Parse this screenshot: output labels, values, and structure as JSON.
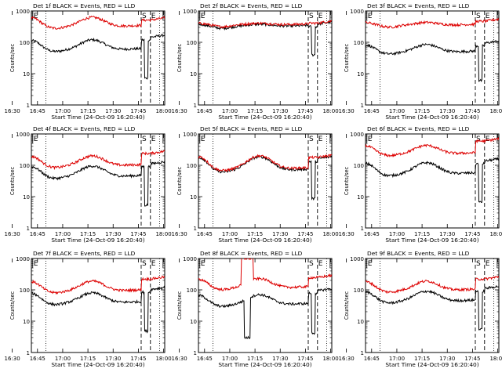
{
  "chart_data": [
    {
      "type": "line",
      "title": "Det 1f BLACK = Events, RED = LLD",
      "xlabel": "Start Time (24-Oct-09 16:20:40)",
      "ylabel": "Counts/sec",
      "yscale": "log",
      "ylim": [
        1,
        1000
      ],
      "xlim_min": [
        20.7,
        100.0
      ],
      "xticks": [
        "16:30",
        "16:45",
        "17:00",
        "17:15",
        "17:30",
        "17:45",
        "18:00"
      ],
      "yticks": [
        "1",
        "10",
        "100",
        "1000"
      ],
      "markers": {
        "E_min": [
          21.5,
          99.0
        ],
        "dotted_min": [
          29.3,
          97.0
        ],
        "dashed_min": [
          86.0,
          91.5
        ],
        "S_label": "S",
        "E_label": "E"
      },
      "series": [
        {
          "name": "Events",
          "color": "#000000",
          "base": 60,
          "hump": 2.0,
          "postdrop": true,
          "tail": 170
        },
        {
          "name": "LLD",
          "color": "#dd0000",
          "base": 330,
          "hump": 1.9,
          "postdrop": false,
          "tail": 600
        }
      ]
    },
    {
      "type": "line",
      "title": "Det 2f BLACK = Events, RED = LLD",
      "xlabel": "Start Time (24-Oct-09 16:20:40)",
      "ylabel": "Counts/sec",
      "yscale": "log",
      "ylim": [
        1,
        1000
      ],
      "xlim_min": [
        20.7,
        100.0
      ],
      "xticks": [
        "16:30",
        "16:45",
        "17:00",
        "17:15",
        "17:30",
        "17:45",
        "18:00"
      ],
      "yticks": [
        "1",
        "10",
        "100",
        "1000"
      ],
      "markers": {
        "E_min": [
          21.5,
          99.0
        ],
        "dotted_min": [
          29.3,
          97.0
        ],
        "dashed_min": [
          86.0,
          91.5
        ],
        "S_label": "S",
        "E_label": "E"
      },
      "series": [
        {
          "name": "Events",
          "color": "#000000",
          "base": 330,
          "hump": 1.15,
          "postdrop": true,
          "tail": 450
        },
        {
          "name": "LLD",
          "color": "#dd0000",
          "base": 370,
          "hump": 1.1,
          "postdrop": false,
          "tail": 480
        }
      ]
    },
    {
      "type": "line",
      "title": "Det 3f BLACK = Events, RED = LLD",
      "xlabel": "Start Time (24-Oct-09 16:20:40)",
      "ylabel": "Counts/sec",
      "yscale": "log",
      "ylim": [
        1,
        1000
      ],
      "xlim_min": [
        20.7,
        100.0
      ],
      "xticks": [
        "16:30",
        "16:45",
        "17:00",
        "17:15",
        "17:30",
        "17:45",
        "18:00"
      ],
      "yticks": [
        "1",
        "10",
        "100",
        "1000"
      ],
      "markers": {
        "E_min": [
          21.5,
          99.0
        ],
        "dotted_min": [
          29.3,
          97.0
        ],
        "dashed_min": [
          86.0,
          91.5
        ],
        "S_label": "S",
        "E_label": "E"
      },
      "series": [
        {
          "name": "Events",
          "color": "#000000",
          "base": 50,
          "hump": 1.7,
          "postdrop": true,
          "tail": 110
        },
        {
          "name": "LLD",
          "color": "#dd0000",
          "base": 360,
          "hump": 1.2,
          "postdrop": false,
          "tail": 550
        }
      ]
    },
    {
      "type": "line",
      "title": "Det 4f BLACK = Events, RED = LLD",
      "xlabel": "Start Time (24-Oct-09 16:20:40)",
      "ylabel": "Counts/sec",
      "yscale": "log",
      "ylim": [
        1,
        1000
      ],
      "xlim_min": [
        20.7,
        100.0
      ],
      "xticks": [
        "16:30",
        "16:45",
        "17:00",
        "17:15",
        "17:30",
        "17:45",
        "18:00"
      ],
      "yticks": [
        "1",
        "10",
        "100",
        "1000"
      ],
      "markers": {
        "E_min": [
          21.5,
          99.0
        ],
        "dotted_min": [
          29.3,
          97.0
        ],
        "dashed_min": [
          86.0,
          91.5
        ],
        "S_label": "S",
        "E_label": "E"
      },
      "series": [
        {
          "name": "Events",
          "color": "#000000",
          "base": 45,
          "hump": 2.1,
          "postdrop": true,
          "tail": 130
        },
        {
          "name": "LLD",
          "color": "#dd0000",
          "base": 100,
          "hump": 2.0,
          "postdrop": false,
          "tail": 280
        }
      ]
    },
    {
      "type": "line",
      "title": "Det 5f BLACK = Events, RED = LLD",
      "xlabel": "Start Time (24-Oct-09 16:20:40)",
      "ylabel": "Counts/sec",
      "yscale": "log",
      "ylim": [
        1,
        1000
      ],
      "xlim_min": [
        20.7,
        100.0
      ],
      "xticks": [
        "16:30",
        "16:45",
        "17:00",
        "17:15",
        "17:30",
        "17:45",
        "18:00"
      ],
      "yticks": [
        "1",
        "10",
        "100",
        "1000"
      ],
      "markers": {
        "E_min": [
          21.5,
          99.0
        ],
        "dotted_min": [
          29.3,
          97.0
        ],
        "dashed_min": [
          86.0,
          91.5
        ],
        "S_label": "S",
        "E_label": "E"
      },
      "series": [
        {
          "name": "Events",
          "color": "#000000",
          "base": 72,
          "hump": 2.6,
          "postdrop": true,
          "tail": 190
        },
        {
          "name": "LLD",
          "color": "#dd0000",
          "base": 80,
          "hump": 2.5,
          "postdrop": false,
          "tail": 210
        }
      ]
    },
    {
      "type": "line",
      "title": "Det 6f BLACK = Events, RED = LLD",
      "xlabel": "Start Time (24-Oct-09 16:20:40)",
      "ylabel": "Counts/sec",
      "yscale": "log",
      "ylim": [
        1,
        1000
      ],
      "xlim_min": [
        20.7,
        100.0
      ],
      "xticks": [
        "16:30",
        "16:45",
        "17:00",
        "17:15",
        "17:30",
        "17:45",
        "18:00"
      ],
      "yticks": [
        "1",
        "10",
        "100",
        "1000"
      ],
      "markers": {
        "E_min": [
          21.5,
          99.0
        ],
        "dotted_min": [
          29.3,
          97.0
        ],
        "dashed_min": [
          86.0,
          91.5
        ],
        "S_label": "S",
        "E_label": "E"
      },
      "series": [
        {
          "name": "Events",
          "color": "#000000",
          "base": 55,
          "hump": 2.2,
          "postdrop": true,
          "tail": 160
        },
        {
          "name": "LLD",
          "color": "#dd0000",
          "base": 240,
          "hump": 1.8,
          "postdrop": false,
          "tail": 700
        }
      ]
    },
    {
      "type": "line",
      "title": "Det 7f BLACK = Events, RED = LLD",
      "xlabel": "Start Time (24-Oct-09 16:20:40)",
      "ylabel": "Counts/sec",
      "yscale": "log",
      "ylim": [
        1,
        1000
      ],
      "xlim_min": [
        20.7,
        100.0
      ],
      "xticks": [
        "16:30",
        "16:45",
        "17:00",
        "17:15",
        "17:30",
        "17:45",
        "18:00"
      ],
      "yticks": [
        "1",
        "10",
        "100",
        "1000"
      ],
      "markers": {
        "E_min": [
          21.5,
          99.0
        ],
        "dotted_min": [
          29.3,
          97.0
        ],
        "dashed_min": [
          86.0,
          91.5
        ],
        "S_label": "S",
        "E_label": "E"
      },
      "series": [
        {
          "name": "Events",
          "color": "#000000",
          "base": 40,
          "hump": 2.0,
          "postdrop": true,
          "tail": 120
        },
        {
          "name": "LLD",
          "color": "#dd0000",
          "base": 95,
          "hump": 2.0,
          "postdrop": false,
          "tail": 260
        }
      ]
    },
    {
      "type": "line",
      "title": "Det 8f BLACK = Events, RED = LLD",
      "xlabel": "Start Time (24-Oct-09 16:20:40)",
      "ylabel": "Counts/sec",
      "yscale": "log",
      "ylim": [
        1,
        1000
      ],
      "xlim_min": [
        20.7,
        100.0
      ],
      "xticks": [
        "16:30",
        "16:45",
        "17:00",
        "17:15",
        "17:30",
        "17:45",
        "18:00"
      ],
      "yticks": [
        "1",
        "10",
        "100",
        "1000"
      ],
      "markers": {
        "E_min": [
          21.5,
          99.0
        ],
        "dotted_min": [
          29.3,
          97.0
        ],
        "dashed_min": [
          86.0,
          91.5
        ],
        "S_label": "S",
        "E_label": "E"
      },
      "spikes": {
        "red_high": 1000,
        "black_low": 3,
        "t_min": [
          46.0,
          53.5
        ]
      },
      "series": [
        {
          "name": "Events",
          "color": "#000000",
          "base": 35,
          "hump": 2.0,
          "postdrop": true,
          "tail": 110
        },
        {
          "name": "LLD",
          "color": "#dd0000",
          "base": 120,
          "hump": 1.9,
          "postdrop": false,
          "tail": 290
        }
      ]
    },
    {
      "type": "line",
      "title": "Det 9f BLACK = Events, RED = LLD",
      "xlabel": "Start Time (24-Oct-09 16:20:40)",
      "ylabel": "Counts/sec",
      "yscale": "log",
      "ylim": [
        1,
        1000
      ],
      "xlim_min": [
        20.7,
        100.0
      ],
      "xticks": [
        "16:30",
        "16:45",
        "17:00",
        "17:15",
        "17:30",
        "17:45",
        "18:00"
      ],
      "yticks": [
        "1",
        "10",
        "100",
        "1000"
      ],
      "markers": {
        "E_min": [
          21.5,
          99.0
        ],
        "dotted_min": [
          29.3,
          97.0
        ],
        "dashed_min": [
          86.0,
          91.5
        ],
        "S_label": "S",
        "E_label": "E"
      },
      "series": [
        {
          "name": "Events",
          "color": "#000000",
          "base": 45,
          "hump": 2.0,
          "postdrop": true,
          "tail": 130
        },
        {
          "name": "LLD",
          "color": "#dd0000",
          "base": 100,
          "hump": 1.9,
          "postdrop": false,
          "tail": 260
        }
      ]
    }
  ]
}
